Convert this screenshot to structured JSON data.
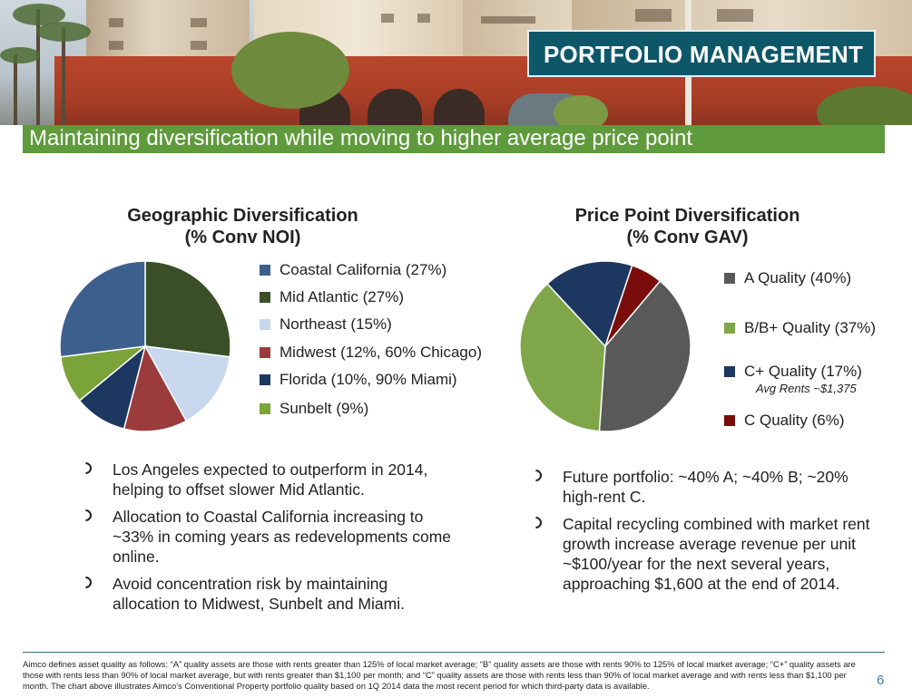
{
  "header": {
    "badge": "PORTFOLIO MANAGEMENT",
    "subtitle": "Maintaining diversification while moving to higher average price point"
  },
  "geo": {
    "title_line1": "Geographic Diversification",
    "title_line2": "(% Conv NOI)",
    "legend": [
      {
        "label": "Coastal California (27%)",
        "color": "#3c5f8d"
      },
      {
        "label": "Mid Atlantic (27%)",
        "color": "#3a4f27"
      },
      {
        "label": "Northeast (15%)",
        "color": "#c7d8ee"
      },
      {
        "label": "Midwest (12%, 60% Chicago)",
        "color": "#9c3b3b"
      },
      {
        "label": "Florida (10%, 90% Miami)",
        "color": "#1c3760"
      },
      {
        "label": "Sunbelt (9%)",
        "color": "#7aa33a"
      }
    ],
    "bullets": [
      "Los Angeles expected to outperform in 2014, helping to offset slower Mid Atlantic.",
      "Allocation to Coastal California increasing to ~33% in coming years as redevelopments come online.",
      "Avoid concentration risk by maintaining allocation to Midwest, Sunbelt and Miami."
    ]
  },
  "price": {
    "title_line1": "Price Point Diversification",
    "title_line2": "(% Conv GAV)",
    "legend": [
      {
        "label": "A Quality (40%)",
        "color": "#595959"
      },
      {
        "label": "B/B+ Quality (37%)",
        "color": "#7fa74a"
      },
      {
        "label": "C+ Quality (17%)",
        "color": "#1c3760"
      },
      {
        "label": "C Quality (6%)",
        "color": "#7a0c0c"
      }
    ],
    "note": "Avg Rents ~$1,375",
    "bullets": [
      "Future portfolio: ~40% A; ~40% B; ~20% high-rent C.",
      "Capital recycling combined with market rent growth increase average revenue per unit ~$100/year for the next several years, approaching $1,600 at the end of 2014."
    ]
  },
  "chart_data": [
    {
      "type": "pie",
      "title": "Geographic Diversification (% Conv NOI)",
      "categories": [
        "Coastal California",
        "Mid Atlantic",
        "Northeast",
        "Midwest",
        "Florida",
        "Sunbelt"
      ],
      "values": [
        27,
        27,
        15,
        12,
        10,
        9
      ],
      "colors": [
        "#3c5f8d",
        "#3a4f27",
        "#c7d8ee",
        "#9c3b3b",
        "#1c3760",
        "#7aa33a"
      ],
      "order_clockwise_from_top": [
        "Mid Atlantic",
        "Northeast",
        "Midwest",
        "Florida",
        "Sunbelt",
        "Coastal California"
      ]
    },
    {
      "type": "pie",
      "title": "Price Point Diversification (% Conv GAV)",
      "categories": [
        "A Quality",
        "B/B+ Quality",
        "C+ Quality",
        "C Quality"
      ],
      "values": [
        40,
        37,
        17,
        6
      ],
      "colors": [
        "#595959",
        "#7fa74a",
        "#1c3760",
        "#7a0c0c"
      ]
    }
  ],
  "footnote": "Aimco defines asset quality as follows: “A” quality assets are those with rents greater than 125% of local market average; “B” quality assets are those with rents 90% to 125% of local market average; “C+” quality assets are those with rents less than 90% of local market average, but with rents greater than $1,100 per month; and “C” quality assets are those with rents less than 90% of local market average and with rents less than $1,100 per month. The chart above illustrates Aimco’s Conventional Property portfolio quality based on 1Q 2014 data the most recent period for which third-party data is available.",
  "page_number": "6"
}
